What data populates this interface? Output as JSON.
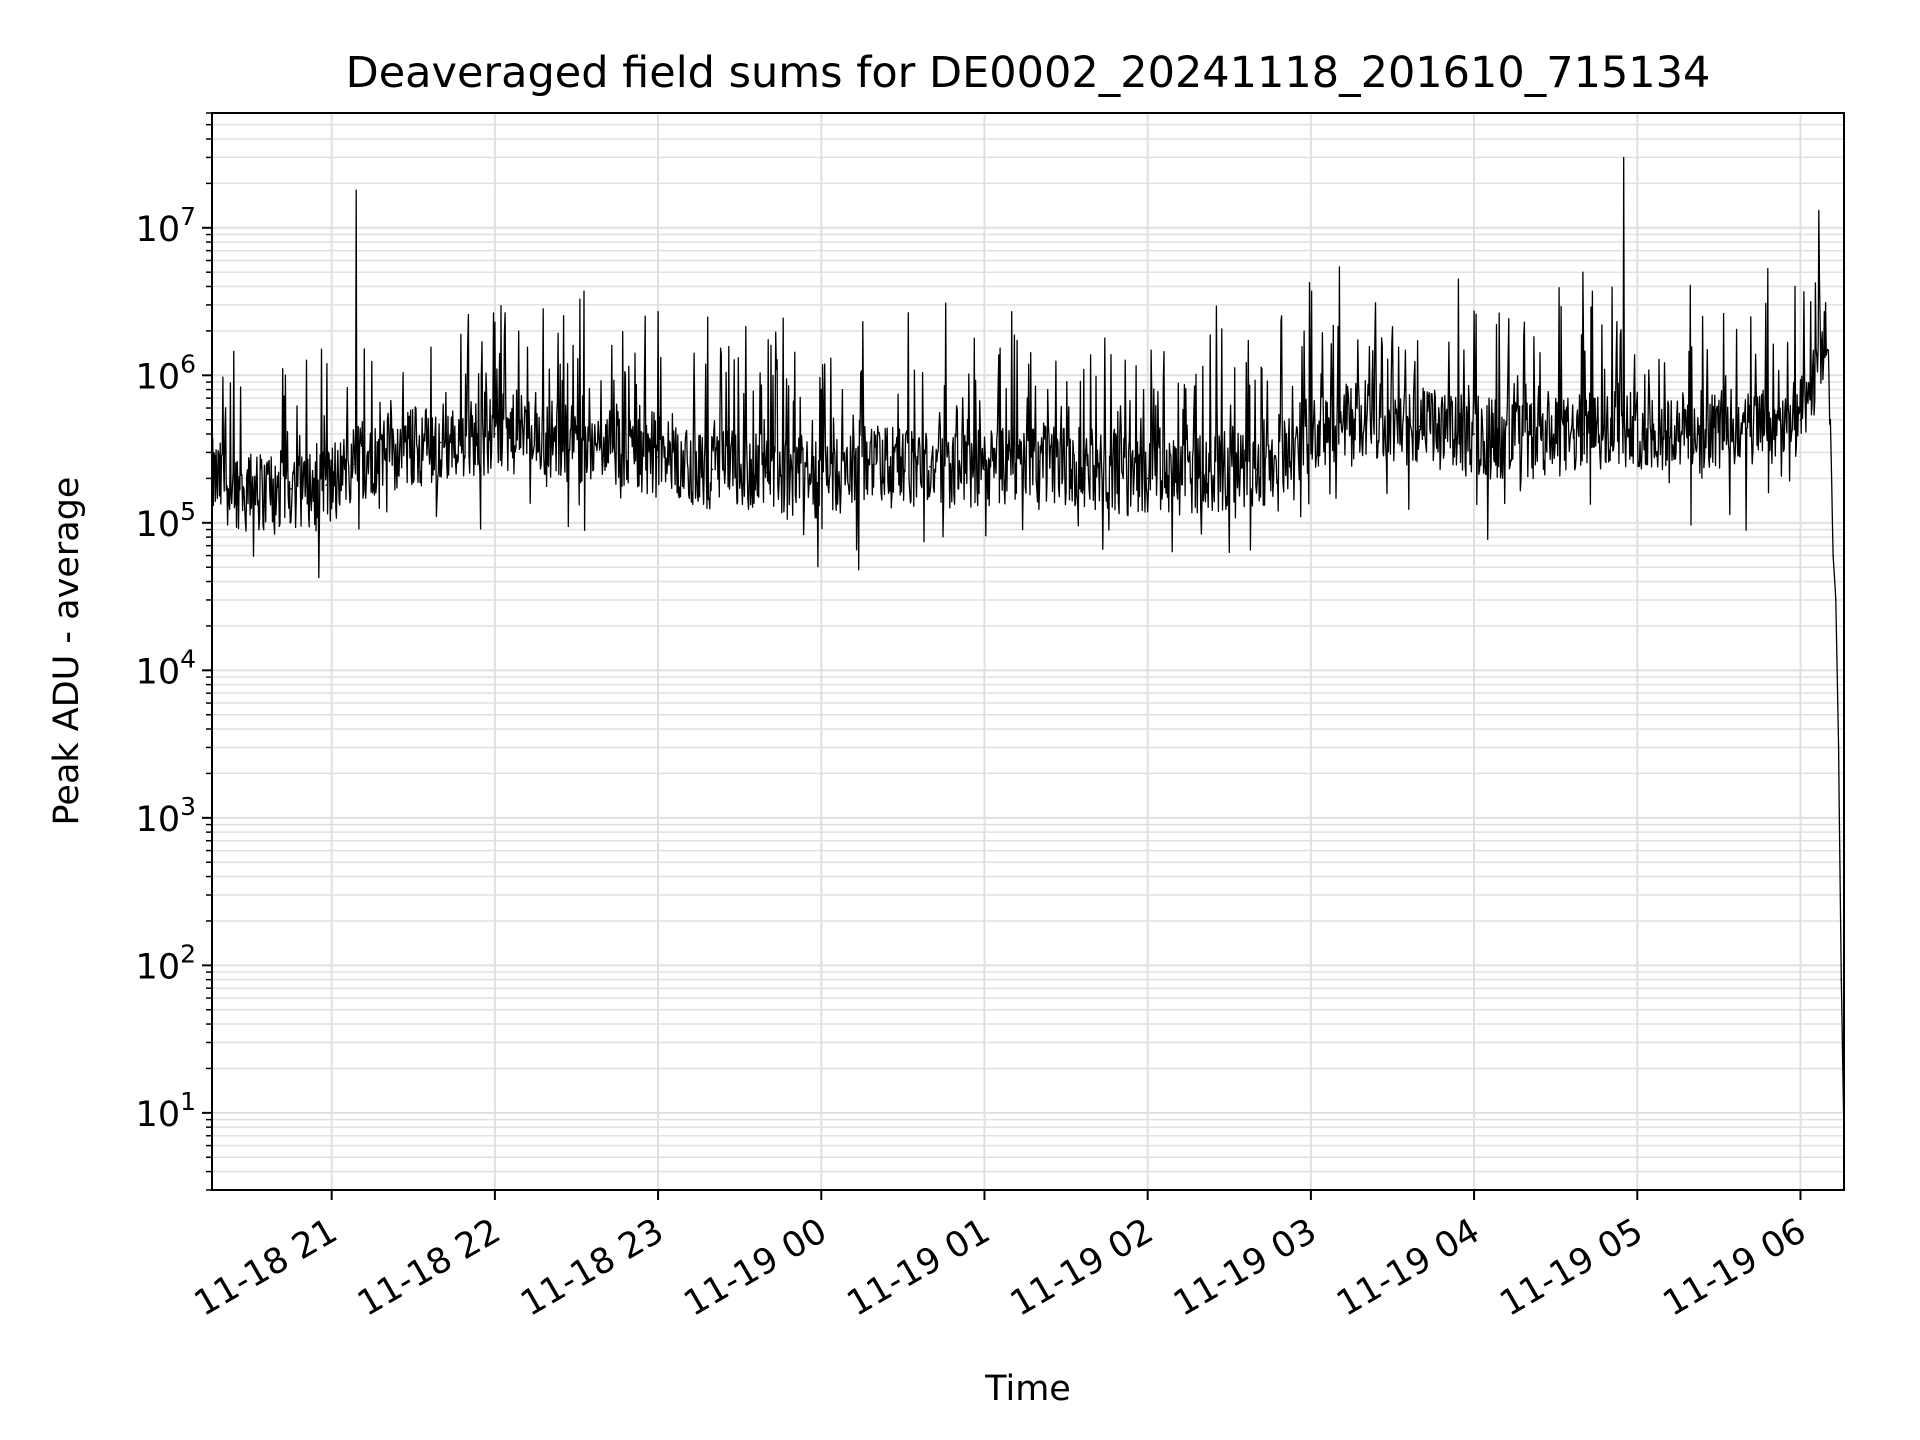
{
  "chart_data": {
    "type": "line",
    "title": "Deaveraged field sums for DE0002_20241118_201610_715134",
    "xlabel": "Time",
    "ylabel": "Peak ADU - average",
    "y_scale": "log",
    "xlim": [
      "2024-11-18 20:16",
      "2024-11-19 06:16"
    ],
    "ylim": [
      3,
      60000000
    ],
    "grid": true,
    "line_color": "#000000",
    "grid_color": "#e0e0e0",
    "x_ticks": [
      "11-18 21",
      "11-18 22",
      "11-18 23",
      "11-19 00",
      "11-19 01",
      "11-19 02",
      "11-19 03",
      "11-19 04",
      "11-19 05",
      "11-19 06"
    ],
    "y_ticks": [
      {
        "base": "10",
        "exp": "1",
        "value": 10
      },
      {
        "base": "10",
        "exp": "2",
        "value": 100
      },
      {
        "base": "10",
        "exp": "3",
        "value": 1000
      },
      {
        "base": "10",
        "exp": "4",
        "value": 10000
      },
      {
        "base": "10",
        "exp": "5",
        "value": 100000
      },
      {
        "base": "10",
        "exp": "6",
        "value": 1000000
      },
      {
        "base": "10",
        "exp": "7",
        "value": 10000000
      }
    ],
    "series": [
      {
        "x": [
          "2024-11-18 20:16",
          "2024-11-18 20:30",
          "2024-11-18 20:45",
          "2024-11-18 20:58",
          "2024-11-18 21:08",
          "2024-11-18 21:20",
          "2024-11-18 21:40",
          "2024-11-18 22:00",
          "2024-11-18 22:20",
          "2024-11-18 22:40",
          "2024-11-18 23:00",
          "2024-11-18 23:20",
          "2024-11-18 23:40",
          "2024-11-19 00:00",
          "2024-11-19 00:20",
          "2024-11-19 00:40",
          "2024-11-19 01:00",
          "2024-11-19 01:20",
          "2024-11-19 01:40",
          "2024-11-19 02:00",
          "2024-11-19 02:20",
          "2024-11-19 02:40",
          "2024-11-19 03:00",
          "2024-11-19 03:20",
          "2024-11-19 03:40",
          "2024-11-19 04:00",
          "2024-11-19 04:20",
          "2024-11-19 04:40",
          "2024-11-19 04:55",
          "2024-11-19 05:10",
          "2024-11-19 05:30",
          "2024-11-19 05:50",
          "2024-11-19 06:00",
          "2024-11-19 06:05",
          "2024-11-19 06:09",
          "2024-11-19 06:11",
          "2024-11-19 06:12",
          "2024-11-19 06:13",
          "2024-11-19 06:14",
          "2024-11-19 06:15",
          "2024-11-19 06:16"
        ],
        "y": [
          200000,
          160000,
          170000,
          180000,
          250000,
          300000,
          350000,
          400000,
          380000,
          320000,
          280000,
          230000,
          220000,
          200000,
          250000,
          240000,
          230000,
          260000,
          230000,
          200000,
          220000,
          230000,
          400000,
          500000,
          450000,
          400000,
          350000,
          400000,
          450000,
          420000,
          430000,
          440000,
          500000,
          900000,
          2000000,
          500000,
          60000,
          30000,
          3000,
          80,
          7
        ]
      }
    ],
    "spikes": [
      {
        "x": "2024-11-18 21:09",
        "y": 18000000
      },
      {
        "x": "2024-11-18 23:00",
        "y": 2700000
      },
      {
        "x": "2024-11-19 01:10",
        "y": 2700000
      },
      {
        "x": "2024-11-19 04:40",
        "y": 5000000
      },
      {
        "x": "2024-11-19 04:55",
        "y": 30000000
      },
      {
        "x": "2024-11-19 05:48",
        "y": 5300000
      }
    ]
  }
}
